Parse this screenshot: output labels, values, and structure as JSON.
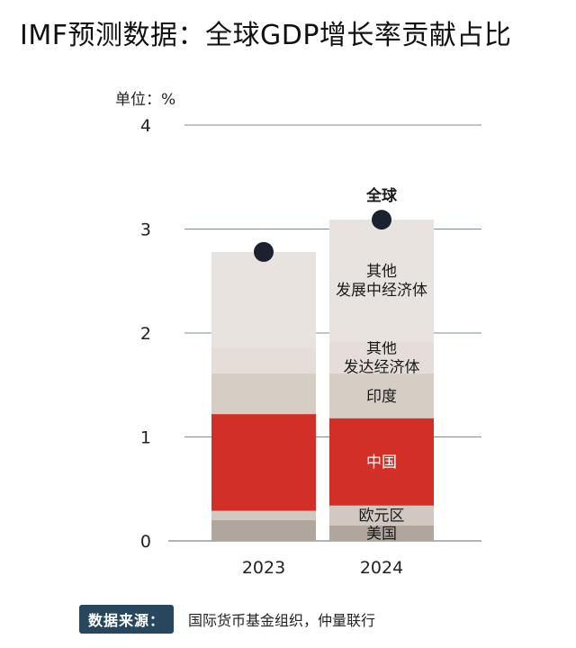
{
  "title": "IMF预测数据：全球GDP增长率贡献占比",
  "unit_label": "单位：%",
  "source": {
    "label": "数据来源：",
    "text": "国际货币基金组织，仲量联行"
  },
  "colors": {
    "美国": "#b1a69d",
    "欧元区": "#d1c8c2",
    "中国": "#d22f26",
    "印度": "#d6cdc5",
    "其他发达经济体": "#e4ddd8",
    "其他发展中经济体": "#e8e3df",
    "marker": "#1a2230",
    "grid": "#7d8c99"
  },
  "chart_data": {
    "type": "bar",
    "stacked": true,
    "categories": [
      "2023",
      "2024"
    ],
    "series": [
      {
        "name": "美国",
        "label": "美国",
        "values": [
          0.2,
          0.15
        ]
      },
      {
        "name": "欧元区",
        "label": "欧元区",
        "values": [
          0.09,
          0.19
        ]
      },
      {
        "name": "中国",
        "label": "中国",
        "values": [
          0.93,
          0.84
        ]
      },
      {
        "name": "印度",
        "label": "印度",
        "values": [
          0.39,
          0.43
        ]
      },
      {
        "name": "其他发达经济体",
        "label": "其他\n发达经济体",
        "values": [
          0.25,
          0.31
        ]
      },
      {
        "name": "其他发展中经济体",
        "label": "其他\n发展中经济体",
        "values": [
          0.92,
          1.17
        ]
      }
    ],
    "markers": {
      "name": "全球",
      "values": [
        2.78,
        3.09
      ]
    },
    "ylim": [
      0,
      4
    ],
    "yticks": [
      0,
      1,
      2,
      3,
      4
    ],
    "grid": true,
    "labelled_category_index": 1
  }
}
